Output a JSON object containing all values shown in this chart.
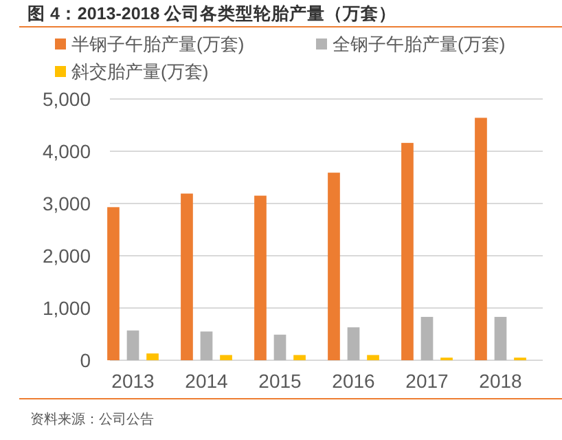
{
  "chart_data": {
    "type": "bar",
    "title": "图 4：2013-2018 公司各类型轮胎产量（万套）",
    "categories": [
      "2013",
      "2014",
      "2015",
      "2016",
      "2017",
      "2018"
    ],
    "series": [
      {
        "name": "半钢子午胎产量(万套)",
        "color": "#ed7d31",
        "values": [
          2930,
          3190,
          3150,
          3590,
          4160,
          4640
        ]
      },
      {
        "name": "全钢子午胎产量(万套)",
        "color": "#b4b4b4",
        "values": [
          570,
          550,
          490,
          630,
          830,
          830
        ]
      },
      {
        "name": "斜交胎产量(万套)",
        "color": "#ffc000",
        "values": [
          130,
          100,
          100,
          100,
          50,
          50
        ]
      }
    ],
    "ylim": [
      0,
      5000
    ],
    "yticks": [
      {
        "value": 0,
        "label": "0"
      },
      {
        "value": 1000,
        "label": "1,000"
      },
      {
        "value": 2000,
        "label": "2,000"
      },
      {
        "value": 3000,
        "label": "3,000"
      },
      {
        "value": 4000,
        "label": "4,000"
      },
      {
        "value": 5000,
        "label": "5,000"
      }
    ],
    "grid": "y",
    "legend": "top",
    "annotations": [
      "资料来源：公司公告"
    ]
  }
}
